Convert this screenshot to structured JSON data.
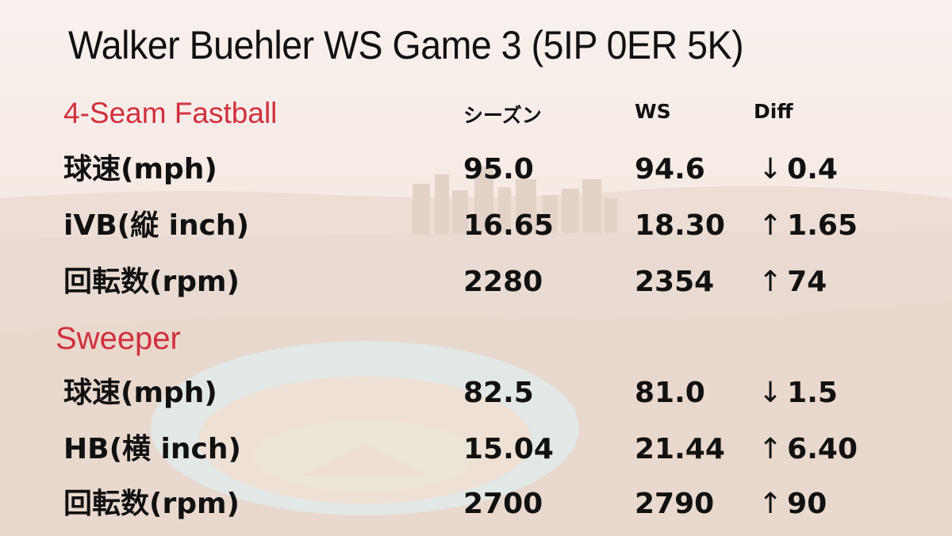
{
  "title": "Walker Buehler WS Game 3 (5IP 0ER 5K)",
  "columns": {
    "season": "シーズン",
    "ws": "WS",
    "diff": "Diff"
  },
  "sections": [
    {
      "name": "4-Seam Fastball",
      "rows": [
        {
          "label": "球速(mph)",
          "season": "95.0",
          "ws": "94.6",
          "arrow": "↓",
          "diff": "0.4"
        },
        {
          "label": "iVB(縦 inch)",
          "season": "16.65",
          "ws": "18.30",
          "arrow": "↑",
          "diff": "1.65"
        },
        {
          "label": "回転数(rpm)",
          "season": "2280",
          "ws": "2354",
          "arrow": "↑",
          "diff": "74"
        }
      ]
    },
    {
      "name": "Sweeper",
      "rows": [
        {
          "label": "球速(mph)",
          "season": "82.5",
          "ws": "81.0",
          "arrow": "↓",
          "diff": "1.5"
        },
        {
          "label": "HB(横 inch)",
          "season": "15.04",
          "ws": "21.44",
          "arrow": "↑",
          "diff": "6.40"
        },
        {
          "label": "回転数(rpm)",
          "season": "2700",
          "ws": "2790",
          "arrow": "↑",
          "diff": "90"
        }
      ]
    }
  ],
  "colors": {
    "section_title": "#d1303e",
    "text": "#111111"
  }
}
